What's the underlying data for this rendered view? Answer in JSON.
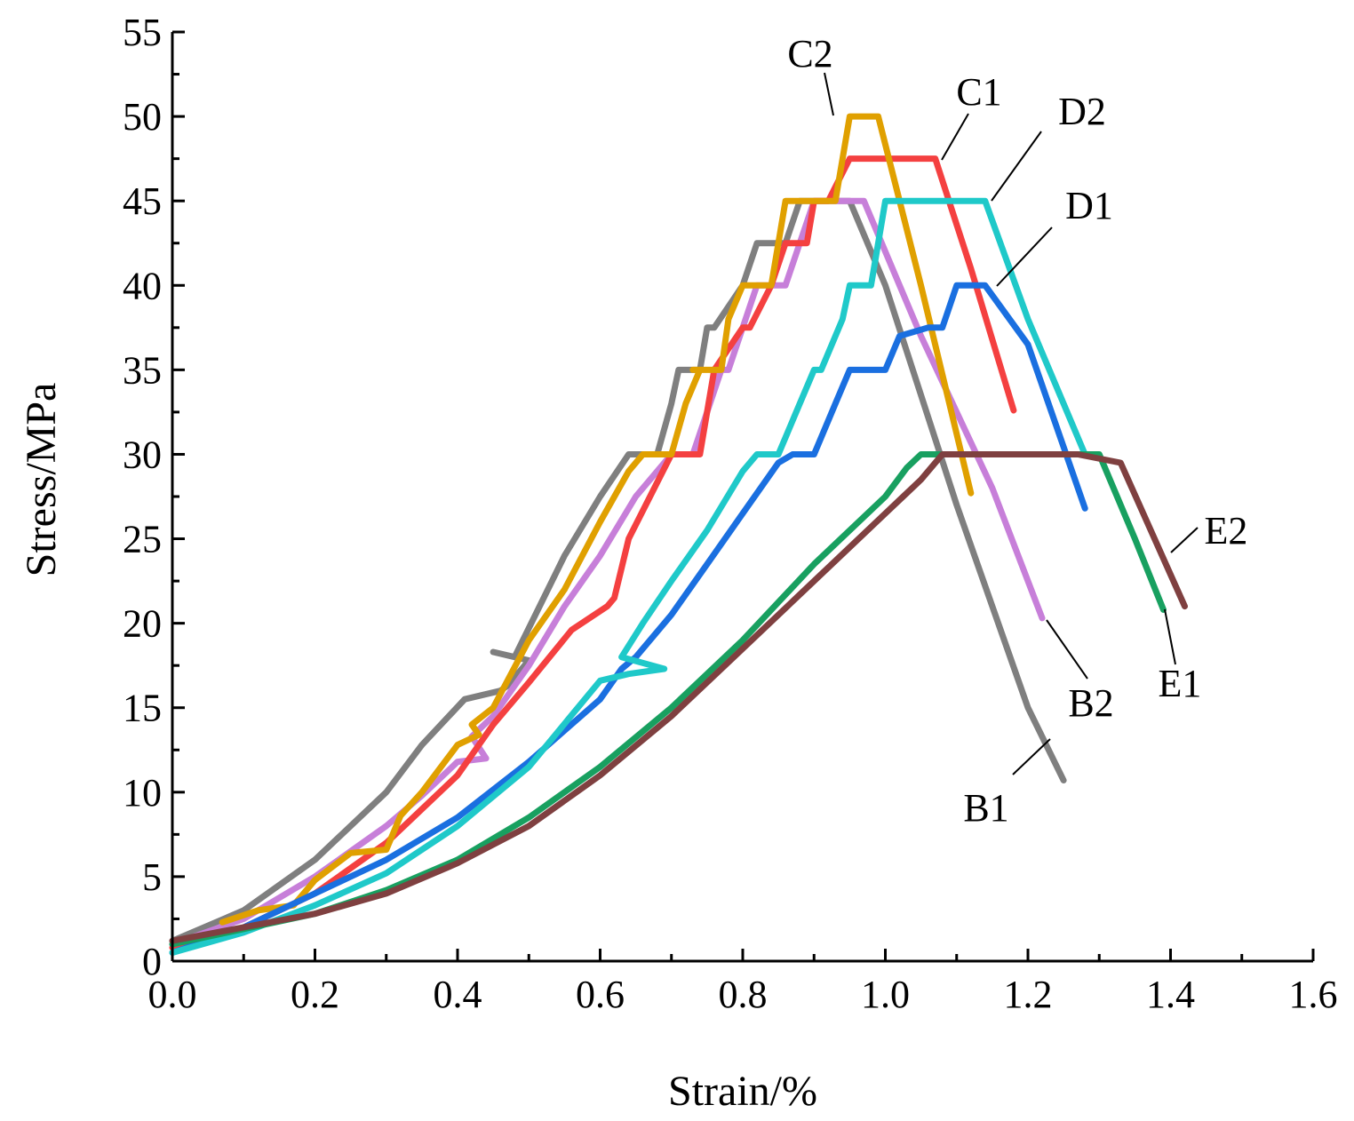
{
  "chart_data": {
    "type": "line",
    "title": "",
    "xlabel": "Strain/%",
    "ylabel": "Stress/MPa",
    "xlim": [
      0.0,
      1.6
    ],
    "ylim": [
      0,
      55
    ],
    "xticks": [
      "0.0",
      "0.2",
      "0.4",
      "0.6",
      "0.8",
      "1.0",
      "1.2",
      "1.4",
      "1.6"
    ],
    "yticks": [
      "0",
      "5",
      "10",
      "15",
      "20",
      "25",
      "30",
      "35",
      "40",
      "45",
      "50",
      "55"
    ],
    "series": [
      {
        "name": "B1",
        "color": "#7f7f7f",
        "x": [
          0.0,
          0.1,
          0.2,
          0.3,
          0.35,
          0.41,
          0.46,
          0.47,
          0.5,
          0.45,
          0.48,
          0.55,
          0.6,
          0.64,
          0.66,
          0.68,
          0.7,
          0.71,
          0.74,
          0.75,
          0.76,
          0.8,
          0.82,
          0.86,
          0.88,
          0.95,
          1.0,
          1.1,
          1.2,
          1.25
        ],
        "y": [
          1.2,
          3.0,
          6.0,
          10.0,
          12.8,
          15.5,
          16.0,
          16.3,
          17.8,
          18.3,
          18.0,
          24.0,
          27.5,
          30.0,
          30.0,
          30.0,
          33.0,
          35.0,
          35.0,
          37.5,
          37.5,
          40.0,
          42.5,
          42.5,
          45.0,
          45.0,
          40.0,
          27.0,
          15.0,
          10.7
        ]
      },
      {
        "name": "B2",
        "color": "#c77fd9",
        "x": [
          0.0,
          0.1,
          0.2,
          0.3,
          0.35,
          0.4,
          0.44,
          0.42,
          0.45,
          0.5,
          0.55,
          0.6,
          0.65,
          0.7,
          0.72,
          0.73,
          0.77,
          0.78,
          0.82,
          0.85,
          0.86,
          0.9,
          0.93,
          0.97,
          1.05,
          1.15,
          1.22
        ],
        "y": [
          1.0,
          2.5,
          5.0,
          8.0,
          9.8,
          11.8,
          12.0,
          13.3,
          14.5,
          17.5,
          21.0,
          24.0,
          27.5,
          30.0,
          30.0,
          30.0,
          35.0,
          35.0,
          40.0,
          40.0,
          40.0,
          45.0,
          45.0,
          45.0,
          37.0,
          28.0,
          20.3
        ]
      },
      {
        "name": "C1",
        "color": "#f44040",
        "x": [
          0.0,
          0.1,
          0.2,
          0.3,
          0.4,
          0.45,
          0.5,
          0.56,
          0.61,
          0.62,
          0.64,
          0.7,
          0.71,
          0.74,
          0.76,
          0.8,
          0.81,
          0.84,
          0.86,
          0.89,
          0.9,
          0.92,
          0.95,
          1.0,
          1.07,
          1.12,
          1.18
        ],
        "y": [
          0.8,
          2.0,
          4.0,
          7.0,
          11.0,
          14.0,
          16.5,
          19.6,
          21.0,
          21.5,
          25.0,
          30.0,
          30.0,
          30.0,
          35.0,
          37.5,
          37.5,
          40.0,
          42.5,
          42.5,
          45.0,
          45.0,
          47.5,
          47.5,
          47.5,
          41.0,
          32.6
        ]
      },
      {
        "name": "C2",
        "color": "#e0a000",
        "x": [
          0.07,
          0.12,
          0.17,
          0.2,
          0.25,
          0.3,
          0.32,
          0.35,
          0.4,
          0.43,
          0.42,
          0.45,
          0.5,
          0.55,
          0.6,
          0.64,
          0.66,
          0.7,
          0.72,
          0.74,
          0.73,
          0.77,
          0.78,
          0.8,
          0.84,
          0.86,
          0.88,
          0.93,
          0.95,
          0.99,
          1.05,
          1.12
        ],
        "y": [
          2.3,
          3.0,
          3.3,
          4.8,
          6.4,
          6.6,
          8.6,
          10.0,
          12.8,
          13.4,
          14.0,
          15.0,
          19.0,
          22.0,
          26.0,
          29.0,
          30.0,
          30.0,
          33.0,
          35.0,
          35.0,
          35.0,
          38.0,
          40.0,
          40.0,
          45.0,
          45.0,
          45.0,
          50.0,
          50.0,
          40.0,
          27.7
        ]
      },
      {
        "name": "D1",
        "color": "#1a6fe0",
        "x": [
          0.0,
          0.1,
          0.2,
          0.3,
          0.4,
          0.5,
          0.6,
          0.63,
          0.65,
          0.7,
          0.75,
          0.8,
          0.85,
          0.87,
          0.9,
          0.93,
          0.95,
          0.99,
          1.0,
          1.02,
          1.06,
          1.08,
          1.1,
          1.14,
          1.2,
          1.28
        ],
        "y": [
          0.5,
          2.0,
          4.0,
          6.0,
          8.5,
          11.8,
          15.5,
          17.3,
          18.0,
          20.5,
          23.5,
          26.5,
          29.5,
          30.0,
          30.0,
          33.0,
          35.0,
          35.0,
          35.0,
          37.0,
          37.5,
          37.5,
          40.0,
          40.0,
          36.5,
          26.8
        ]
      },
      {
        "name": "D2",
        "color": "#1fc9c9",
        "x": [
          0.0,
          0.1,
          0.2,
          0.3,
          0.4,
          0.5,
          0.6,
          0.64,
          0.69,
          0.63,
          0.66,
          0.7,
          0.75,
          0.8,
          0.82,
          0.85,
          0.88,
          0.9,
          0.91,
          0.94,
          0.95,
          0.98,
          1.0,
          1.02,
          1.14,
          1.2,
          1.28
        ],
        "y": [
          0.5,
          1.7,
          3.3,
          5.2,
          8.0,
          11.5,
          16.6,
          17.0,
          17.3,
          18.0,
          20.0,
          22.5,
          25.5,
          29.0,
          30.0,
          30.0,
          33.0,
          35.0,
          35.0,
          38.0,
          40.0,
          40.0,
          45.0,
          45.0,
          45.0,
          38.0,
          30.0
        ]
      },
      {
        "name": "E1",
        "color": "#18a060",
        "x": [
          0.0,
          0.2,
          0.3,
          0.4,
          0.5,
          0.6,
          0.7,
          0.8,
          0.9,
          1.0,
          1.03,
          1.05,
          1.1,
          1.3,
          1.35,
          1.39
        ],
        "y": [
          1.0,
          2.8,
          4.2,
          6.0,
          8.5,
          11.5,
          15.0,
          19.0,
          23.5,
          27.5,
          29.2,
          30.0,
          30.0,
          30.0,
          25.0,
          20.8
        ]
      },
      {
        "name": "E2",
        "color": "#7f4040",
        "x": [
          0.0,
          0.2,
          0.3,
          0.4,
          0.5,
          0.6,
          0.7,
          0.8,
          0.9,
          1.0,
          1.05,
          1.08,
          1.27,
          1.33,
          1.42
        ],
        "y": [
          1.2,
          2.8,
          4.0,
          5.8,
          8.0,
          11.0,
          14.5,
          18.5,
          22.5,
          26.5,
          28.5,
          30.0,
          30.0,
          29.5,
          21.0
        ]
      }
    ],
    "annotations": [
      {
        "name": "C2",
        "text": "C2"
      },
      {
        "name": "C1",
        "text": "C1"
      },
      {
        "name": "D2",
        "text": "D2"
      },
      {
        "name": "D1",
        "text": "D1"
      },
      {
        "name": "E2",
        "text": "E2"
      },
      {
        "name": "E1",
        "text": "E1"
      },
      {
        "name": "B2",
        "text": "B2"
      },
      {
        "name": "B1",
        "text": "B1"
      }
    ]
  }
}
